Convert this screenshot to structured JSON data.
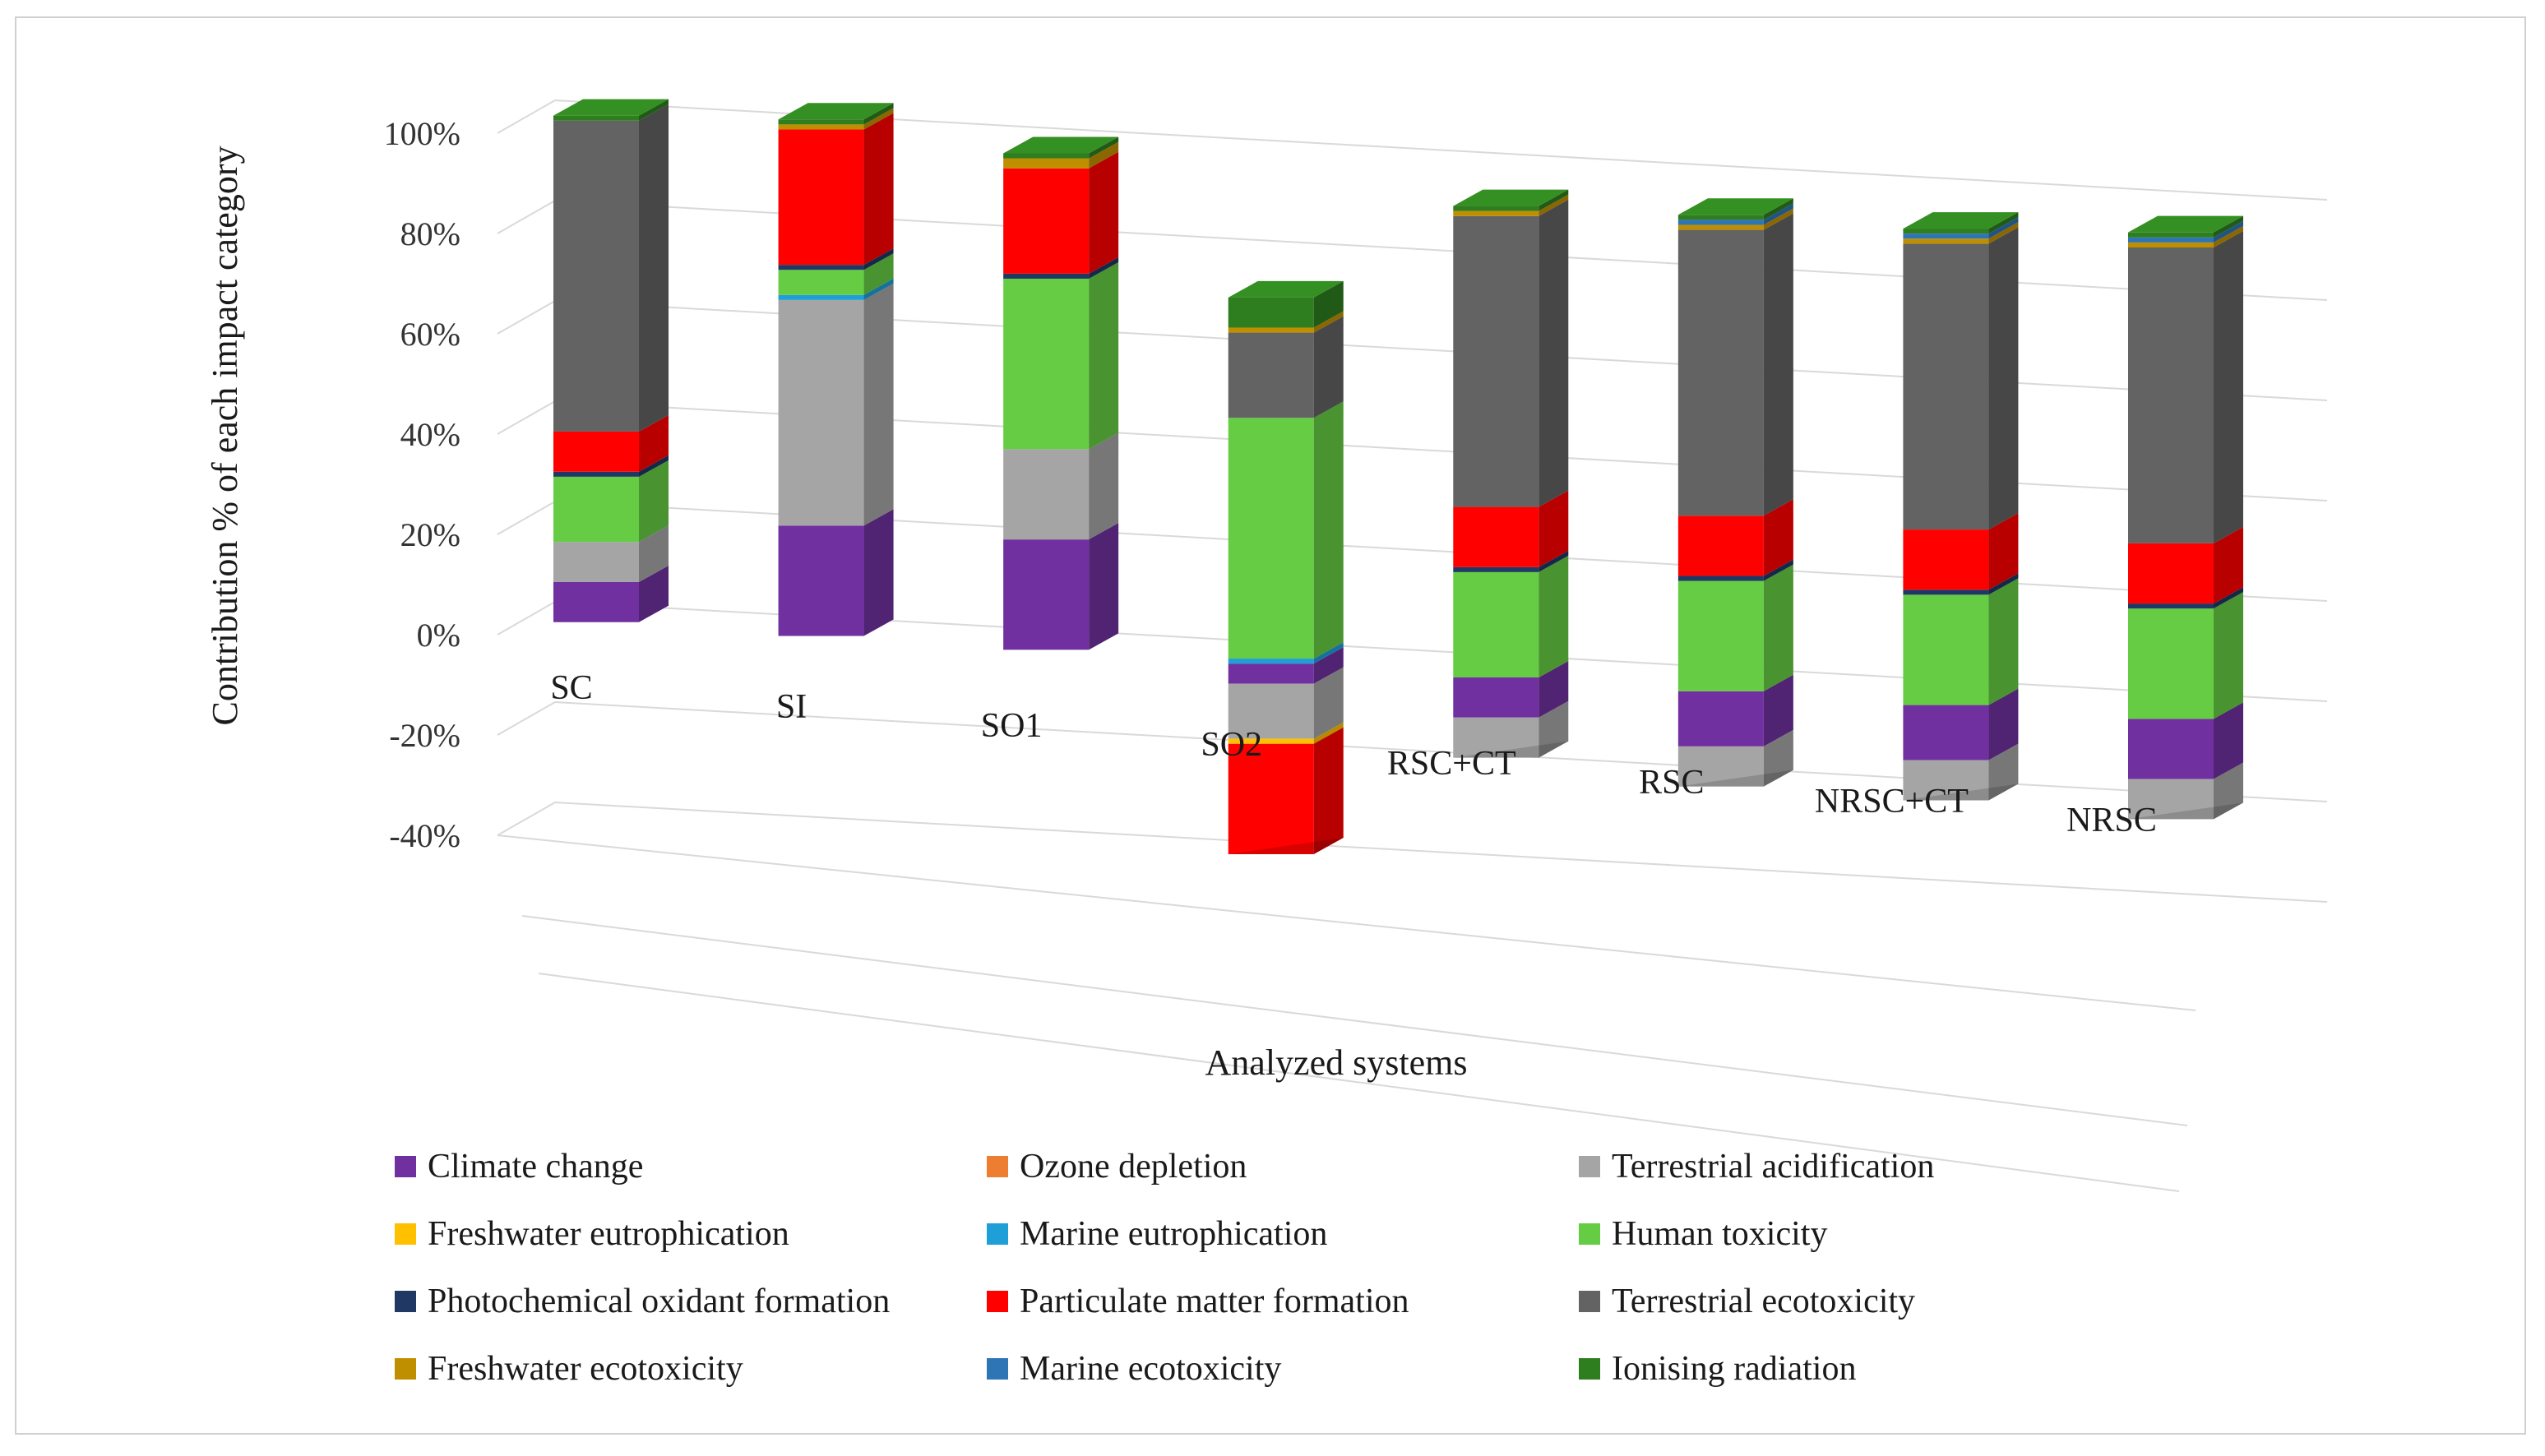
{
  "chart_data": {
    "type": "bar",
    "stacked": true,
    "three_d": true,
    "title": "",
    "xlabel": "Analyzed systems",
    "ylabel": "Contribution % of each impact category",
    "ylim": [
      -40,
      100
    ],
    "y_ticks": [
      -40,
      -20,
      0,
      20,
      40,
      60,
      80,
      100
    ],
    "y_tick_labels": [
      "-40%",
      "-20%",
      "0%",
      "20%",
      "40%",
      "60%",
      "80%",
      "100%"
    ],
    "grid": true,
    "legend_position": "bottom",
    "categories": [
      "SC",
      "SI",
      "SO1",
      "SO2",
      "RSC+CT",
      "RSC",
      "NRSC+CT",
      "NRSC"
    ],
    "series": [
      {
        "name": "Climate change",
        "color": "#7030a0",
        "values": [
          8,
          22,
          22,
          -4,
          -8,
          -11,
          -11,
          -12
        ]
      },
      {
        "name": "Ozone depletion",
        "color": "#ed7d31",
        "values": [
          0,
          0,
          0,
          0,
          0,
          0,
          0,
          0
        ]
      },
      {
        "name": "Terrestrial acidification",
        "color": "#a5a5a5",
        "values": [
          8,
          45,
          18,
          -11,
          -8,
          -8,
          -8,
          -8
        ]
      },
      {
        "name": "Freshwater eutrophication",
        "color": "#ffc000",
        "values": [
          0,
          0,
          0,
          -1,
          0,
          0,
          0,
          0
        ]
      },
      {
        "name": "Marine eutrophication",
        "color": "#1f9fd8",
        "values": [
          0,
          1,
          0,
          1,
          0,
          0,
          0,
          0
        ]
      },
      {
        "name": "Human toxicity",
        "color": "#66cc44",
        "values": [
          13,
          5,
          34,
          48,
          21,
          22,
          22,
          22
        ]
      },
      {
        "name": "Photochemical oxidant formation",
        "color": "#1f3864",
        "values": [
          1,
          1,
          1,
          0,
          1,
          1,
          1,
          1
        ]
      },
      {
        "name": "Particulate matter formation",
        "color": "#ff0000",
        "values": [
          8,
          27,
          21,
          -22,
          12,
          12,
          12,
          12
        ]
      },
      {
        "name": "Terrestrial ecotoxicity",
        "color": "#636363",
        "values": [
          62,
          0,
          0,
          17,
          58,
          57,
          57,
          59
        ]
      },
      {
        "name": "Freshwater ecotoxicity",
        "color": "#bf8f00",
        "values": [
          0,
          1,
          2,
          1,
          1,
          1,
          1,
          1
        ]
      },
      {
        "name": "Marine ecotoxicity",
        "color": "#2e75b6",
        "values": [
          0,
          0,
          0,
          0,
          0,
          1,
          1,
          1
        ]
      },
      {
        "name": "Ionising radiation",
        "color": "#2e7d1e",
        "values": [
          1,
          1,
          1,
          6,
          1,
          1,
          1,
          1
        ]
      }
    ]
  }
}
